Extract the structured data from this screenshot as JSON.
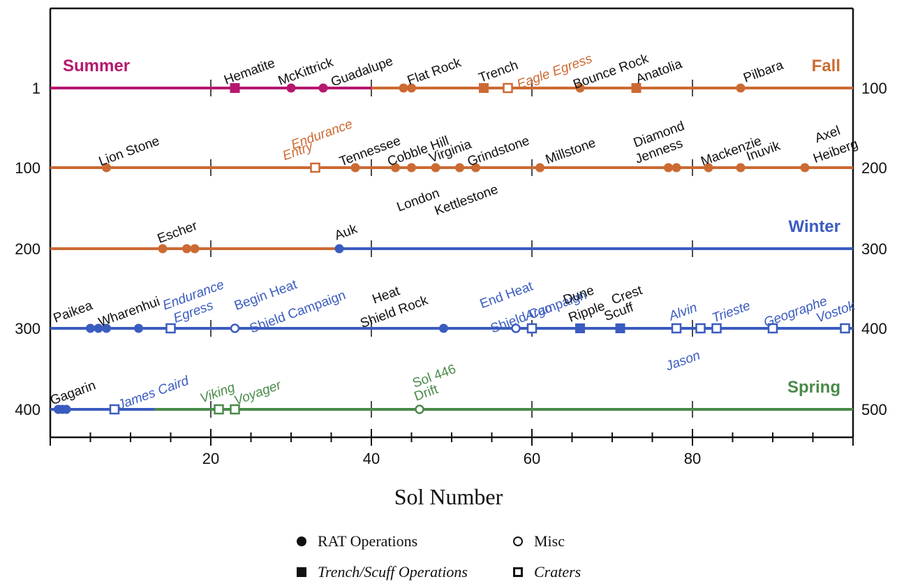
{
  "chart_data": {
    "type": "scatter",
    "xlabel": "Sol Number",
    "xticks": [
      20,
      40,
      60,
      80
    ],
    "xlim": [
      0,
      100
    ],
    "grid": false,
    "colors": {
      "summer": "#b5186e",
      "fall": "#cc6a33",
      "winter": "#3b5cbf",
      "spring": "#4a8a4a",
      "ink": "#111111"
    },
    "rows": [
      {
        "left_label": "1",
        "right_label": "100"
      },
      {
        "left_label": "100",
        "right_label": "200"
      },
      {
        "left_label": "200",
        "right_label": "300"
      },
      {
        "left_label": "300",
        "right_label": "400"
      },
      {
        "left_label": "400",
        "right_label": "500"
      }
    ],
    "seasons": [
      {
        "name": "Summer",
        "row": 0,
        "side": "left",
        "color": "summer"
      },
      {
        "name": "Fall",
        "row": 0,
        "side": "right",
        "color": "fall"
      },
      {
        "name": "Winter",
        "row": 2,
        "side": "right",
        "color": "winter"
      },
      {
        "name": "Spring",
        "row": 4,
        "side": "right",
        "color": "spring"
      }
    ],
    "line_segments": [
      {
        "row": 0,
        "from": 0,
        "to": 40,
        "color": "summer"
      },
      {
        "row": 0,
        "from": 40,
        "to": 100,
        "color": "fall"
      },
      {
        "row": 1,
        "from": 0,
        "to": 100,
        "color": "fall"
      },
      {
        "row": 2,
        "from": 0,
        "to": 36,
        "color": "fall"
      },
      {
        "row": 2,
        "from": 36,
        "to": 100,
        "color": "winter"
      },
      {
        "row": 3,
        "from": 0,
        "to": 100,
        "color": "winter"
      },
      {
        "row": 4,
        "from": 0,
        "to": 13,
        "color": "winter"
      },
      {
        "row": 4,
        "from": 13,
        "to": 100,
        "color": "spring"
      }
    ],
    "points": [
      {
        "row": 0,
        "x": 23,
        "marker": "filled-square",
        "color": "summer"
      },
      {
        "row": 0,
        "x": 30,
        "marker": "filled-circle",
        "color": "summer"
      },
      {
        "row": 0,
        "x": 34,
        "marker": "filled-circle",
        "color": "summer"
      },
      {
        "row": 0,
        "x": 44,
        "marker": "filled-circle",
        "color": "fall"
      },
      {
        "row": 0,
        "x": 45,
        "marker": "filled-circle",
        "color": "fall"
      },
      {
        "row": 0,
        "x": 54,
        "marker": "filled-square",
        "color": "fall"
      },
      {
        "row": 0,
        "x": 57,
        "marker": "open-square",
        "color": "fall"
      },
      {
        "row": 0,
        "x": 66,
        "marker": "filled-circle",
        "color": "fall"
      },
      {
        "row": 0,
        "x": 73,
        "marker": "filled-square",
        "color": "fall"
      },
      {
        "row": 0,
        "x": 86,
        "marker": "filled-circle",
        "color": "fall"
      },
      {
        "row": 1,
        "x": 7,
        "marker": "filled-circle",
        "color": "fall"
      },
      {
        "row": 1,
        "x": 33,
        "marker": "open-square",
        "color": "fall"
      },
      {
        "row": 1,
        "x": 38,
        "marker": "filled-circle",
        "color": "fall"
      },
      {
        "row": 1,
        "x": 43,
        "marker": "filled-circle",
        "color": "fall"
      },
      {
        "row": 1,
        "x": 45,
        "marker": "filled-circle",
        "color": "fall"
      },
      {
        "row": 1,
        "x": 48,
        "marker": "filled-circle",
        "color": "fall"
      },
      {
        "row": 1,
        "x": 51,
        "marker": "filled-circle",
        "color": "fall"
      },
      {
        "row": 1,
        "x": 53,
        "marker": "filled-circle",
        "color": "fall"
      },
      {
        "row": 1,
        "x": 61,
        "marker": "filled-circle",
        "color": "fall"
      },
      {
        "row": 1,
        "x": 77,
        "marker": "filled-circle",
        "color": "fall"
      },
      {
        "row": 1,
        "x": 78,
        "marker": "filled-circle",
        "color": "fall"
      },
      {
        "row": 1,
        "x": 82,
        "marker": "filled-circle",
        "color": "fall"
      },
      {
        "row": 1,
        "x": 86,
        "marker": "filled-circle",
        "color": "fall"
      },
      {
        "row": 1,
        "x": 94,
        "marker": "filled-circle",
        "color": "fall"
      },
      {
        "row": 2,
        "x": 14,
        "marker": "filled-circle",
        "color": "fall"
      },
      {
        "row": 2,
        "x": 17,
        "marker": "filled-circle",
        "color": "fall"
      },
      {
        "row": 2,
        "x": 18,
        "marker": "filled-circle",
        "color": "fall"
      },
      {
        "row": 2,
        "x": 36,
        "marker": "filled-circle",
        "color": "winter"
      },
      {
        "row": 3,
        "x": 5,
        "marker": "filled-circle",
        "color": "winter"
      },
      {
        "row": 3,
        "x": 6,
        "marker": "filled-circle",
        "color": "winter"
      },
      {
        "row": 3,
        "x": 7,
        "marker": "filled-circle",
        "color": "winter"
      },
      {
        "row": 3,
        "x": 11,
        "marker": "filled-circle",
        "color": "winter"
      },
      {
        "row": 3,
        "x": 15,
        "marker": "open-square",
        "color": "winter"
      },
      {
        "row": 3,
        "x": 23,
        "marker": "open-circle",
        "color": "winter"
      },
      {
        "row": 3,
        "x": 49,
        "marker": "filled-circle",
        "color": "winter"
      },
      {
        "row": 3,
        "x": 58,
        "marker": "open-circle",
        "color": "winter"
      },
      {
        "row": 3,
        "x": 60,
        "marker": "open-square",
        "color": "winter"
      },
      {
        "row": 3,
        "x": 66,
        "marker": "filled-square",
        "color": "winter"
      },
      {
        "row": 3,
        "x": 71,
        "marker": "filled-square",
        "color": "winter"
      },
      {
        "row": 3,
        "x": 78,
        "marker": "open-square",
        "color": "winter"
      },
      {
        "row": 3,
        "x": 81,
        "marker": "open-square",
        "color": "winter"
      },
      {
        "row": 3,
        "x": 83,
        "marker": "open-square",
        "color": "winter"
      },
      {
        "row": 3,
        "x": 90,
        "marker": "open-square",
        "color": "winter"
      },
      {
        "row": 3,
        "x": 99,
        "marker": "open-square",
        "color": "winter"
      },
      {
        "row": 4,
        "x": 1,
        "marker": "filled-circle",
        "color": "winter"
      },
      {
        "row": 4,
        "x": 1.5,
        "marker": "filled-circle",
        "color": "winter"
      },
      {
        "row": 4,
        "x": 2,
        "marker": "filled-circle",
        "color": "winter"
      },
      {
        "row": 4,
        "x": 8,
        "marker": "open-square",
        "color": "winter"
      },
      {
        "row": 4,
        "x": 21,
        "marker": "open-square",
        "color": "spring"
      },
      {
        "row": 4,
        "x": 23,
        "marker": "open-square",
        "color": "spring"
      },
      {
        "row": 4,
        "x": 46,
        "marker": "open-circle",
        "color": "spring"
      }
    ],
    "annotations": [
      {
        "text": "Hematite",
        "row": 0,
        "x": 25,
        "color": "ink",
        "italic": false
      },
      {
        "text": "McKittrick",
        "row": 0,
        "x": 32,
        "color": "ink",
        "italic": false
      },
      {
        "text": "Guadalupe",
        "row": 0,
        "x": 39,
        "color": "ink",
        "italic": false
      },
      {
        "text": "Flat Rock",
        "row": 0,
        "x": 48,
        "color": "ink",
        "italic": false
      },
      {
        "text": "Trench",
        "row": 0,
        "x": 56,
        "color": "ink",
        "italic": false
      },
      {
        "text": "Eagle Egress",
        "row": 0,
        "x": 63,
        "color": "fall",
        "italic": true
      },
      {
        "text": "Bounce Rock",
        "row": 0,
        "x": 70,
        "color": "ink",
        "italic": false
      },
      {
        "text": "Anatolia",
        "row": 0,
        "x": 76,
        "color": "ink",
        "italic": false
      },
      {
        "text": "Pilbara",
        "row": 0,
        "x": 89,
        "color": "ink",
        "italic": false
      },
      {
        "text": "Lion Stone",
        "row": 1,
        "x": 10,
        "color": "ink",
        "italic": false
      },
      {
        "text": "Endurance",
        "row": 1,
        "x": 34,
        "color": "fall",
        "italic": true,
        "line": 2
      },
      {
        "text": "Entry",
        "row": 1,
        "x": 31,
        "color": "fall",
        "italic": true,
        "line": 1
      },
      {
        "text": "Tennessee",
        "row": 1,
        "x": 40,
        "color": "ink",
        "italic": false
      },
      {
        "text": "Cobble Hill",
        "row": 1,
        "x": 46,
        "color": "ink",
        "italic": false
      },
      {
        "text": "Virginia",
        "row": 1,
        "x": 50,
        "color": "ink",
        "italic": false
      },
      {
        "text": "Grindstone",
        "row": 1,
        "x": 56,
        "color": "ink",
        "italic": false
      },
      {
        "text": "Millstone",
        "row": 1,
        "x": 65,
        "color": "ink",
        "italic": false
      },
      {
        "text": "Diamond",
        "row": 1,
        "x": 76,
        "color": "ink",
        "italic": false,
        "line": 2
      },
      {
        "text": "Jenness",
        "row": 1,
        "x": 76,
        "color": "ink",
        "italic": false,
        "line": 1
      },
      {
        "text": "Mackenzie",
        "row": 1,
        "x": 85,
        "color": "ink",
        "italic": false
      },
      {
        "text": "Inuvik",
        "row": 1,
        "x": 89,
        "color": "ink",
        "italic": false
      },
      {
        "text": "Axel",
        "row": 1,
        "x": 97,
        "color": "ink",
        "italic": false,
        "line": 2
      },
      {
        "text": "Heiberg",
        "row": 1,
        "x": 98,
        "color": "ink",
        "italic": false,
        "line": 1
      },
      {
        "text": "London",
        "row": 1,
        "x": 46,
        "color": "ink",
        "italic": false,
        "below": true
      },
      {
        "text": "Kettlestone",
        "row": 1,
        "x": 52,
        "color": "ink",
        "italic": false,
        "below": true
      },
      {
        "text": "Escher",
        "row": 2,
        "x": 16,
        "color": "ink",
        "italic": false
      },
      {
        "text": "Auk",
        "row": 2,
        "x": 37,
        "color": "ink",
        "italic": false
      },
      {
        "text": "Paikea",
        "row": 3,
        "x": 3,
        "color": "ink",
        "italic": false
      },
      {
        "text": "Wharenhui",
        "row": 3,
        "x": 10,
        "color": "ink",
        "italic": false
      },
      {
        "text": "Endurance",
        "row": 3,
        "x": 18,
        "color": "winter",
        "italic": true,
        "line": 2
      },
      {
        "text": "Egress",
        "row": 3,
        "x": 18,
        "color": "winter",
        "italic": true,
        "line": 1
      },
      {
        "text": "Begin Heat",
        "row": 3,
        "x": 27,
        "color": "winter",
        "italic": false,
        "line": 2
      },
      {
        "text": "Shield Campaign",
        "row": 3,
        "x": 31,
        "color": "winter",
        "italic": false,
        "line": 1
      },
      {
        "text": "Heat",
        "row": 3,
        "x": 42,
        "color": "ink",
        "italic": false,
        "line": 2
      },
      {
        "text": "Shield Rock",
        "row": 3,
        "x": 43,
        "color": "ink",
        "italic": false,
        "line": 1
      },
      {
        "text": "End Heat",
        "row": 3,
        "x": 57,
        "color": "winter",
        "italic": false,
        "line": 2
      },
      {
        "text": "Shield Campaign",
        "row": 3,
        "x": 61,
        "color": "winter",
        "italic": false,
        "line": 1
      },
      {
        "text": "Argo",
        "row": 3,
        "x": 61,
        "color": "winter",
        "italic": true
      },
      {
        "text": "Dune",
        "row": 3,
        "x": 66,
        "color": "ink",
        "italic": false,
        "line": 2
      },
      {
        "text": "Ripple",
        "row": 3,
        "x": 67,
        "color": "ink",
        "italic": false,
        "line": 1
      },
      {
        "text": "Crest",
        "row": 3,
        "x": 72,
        "color": "ink",
        "italic": false,
        "line": 2
      },
      {
        "text": "Scuff",
        "row": 3,
        "x": 71,
        "color": "ink",
        "italic": false,
        "line": 1
      },
      {
        "text": "Alvin",
        "row": 3,
        "x": 79,
        "color": "winter",
        "italic": true
      },
      {
        "text": "Trieste",
        "row": 3,
        "x": 85,
        "color": "winter",
        "italic": true
      },
      {
        "text": "Geographe",
        "row": 3,
        "x": 93,
        "color": "winter",
        "italic": true
      },
      {
        "text": "Vostok",
        "row": 3,
        "x": 98,
        "color": "winter",
        "italic": true
      },
      {
        "text": "Jason",
        "row": 3,
        "x": 79,
        "color": "winter",
        "italic": true,
        "below": true
      },
      {
        "text": "Gagarin",
        "row": 4,
        "x": 3,
        "color": "ink",
        "italic": false
      },
      {
        "text": "James Caird",
        "row": 4,
        "x": 13,
        "color": "winter",
        "italic": true
      },
      {
        "text": "Viking",
        "row": 4,
        "x": 21,
        "color": "spring",
        "italic": true
      },
      {
        "text": "Voyager",
        "row": 4,
        "x": 26,
        "color": "spring",
        "italic": true
      },
      {
        "text": "Sol 446",
        "row": 4,
        "x": 48,
        "color": "spring",
        "italic": false,
        "line": 2
      },
      {
        "text": "Drift",
        "row": 4,
        "x": 47,
        "color": "spring",
        "italic": false,
        "line": 1
      }
    ]
  },
  "legend": {
    "rat": "RAT Operations",
    "misc": "Misc",
    "trench": "Trench/Scuff Operations",
    "craters": "Craters"
  }
}
